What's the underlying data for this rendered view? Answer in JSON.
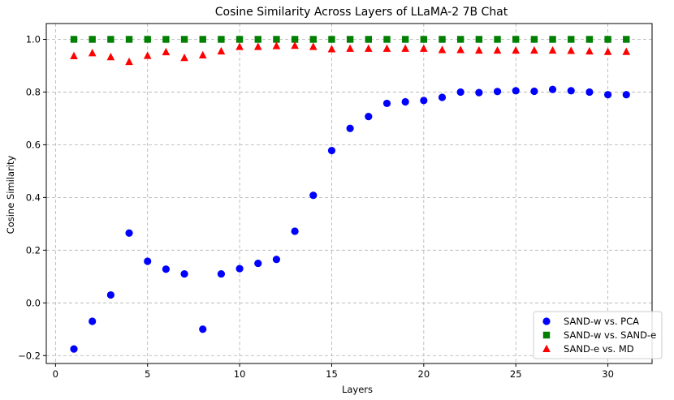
{
  "chart_data": {
    "type": "scatter",
    "title": "Cosine Similarity Across Layers of LLaMA-2 7B Chat",
    "xlabel": "Layers",
    "ylabel": "Cosine Similarity",
    "xlim": [
      -0.5,
      32.4
    ],
    "ylim": [
      -0.23,
      1.06
    ],
    "xticks": [
      0,
      5,
      10,
      15,
      20,
      25,
      30
    ],
    "yticks": [
      -0.2,
      0.0,
      0.2,
      0.4,
      0.6,
      0.8,
      1.0
    ],
    "ytick_labels": [
      "−0.2",
      "0.0",
      "0.2",
      "0.4",
      "0.6",
      "0.8",
      "1.0"
    ],
    "grid": true,
    "legend_position": "lower-right",
    "x": [
      1,
      2,
      3,
      4,
      5,
      6,
      7,
      8,
      9,
      10,
      11,
      12,
      13,
      14,
      15,
      16,
      17,
      18,
      19,
      20,
      21,
      22,
      23,
      24,
      25,
      26,
      27,
      28,
      29,
      30,
      31
    ],
    "series": [
      {
        "name": "SAND-w vs. PCA",
        "marker": "circle",
        "color": "#0000ff",
        "values": [
          -0.175,
          -0.07,
          0.03,
          0.265,
          0.158,
          0.128,
          0.11,
          -0.1,
          0.11,
          0.13,
          0.15,
          0.165,
          0.272,
          0.408,
          0.578,
          0.662,
          0.707,
          0.757,
          0.763,
          0.768,
          0.78,
          0.8,
          0.798,
          0.802,
          0.805,
          0.803,
          0.81,
          0.805,
          0.8,
          0.79,
          0.79
        ]
      },
      {
        "name": "SAND-w vs. SAND-e",
        "marker": "square",
        "color": "#008000",
        "values": [
          1.0,
          1.0,
          1.0,
          1.0,
          1.0,
          1.0,
          1.0,
          1.0,
          1.0,
          1.0,
          1.0,
          1.0,
          1.0,
          1.0,
          1.0,
          1.0,
          1.0,
          1.0,
          1.0,
          1.0,
          1.0,
          1.0,
          1.0,
          1.0,
          1.0,
          1.0,
          1.0,
          1.0,
          1.0,
          1.0,
          1.0
        ]
      },
      {
        "name": "SAND-e vs. MD",
        "marker": "triangle",
        "color": "#ff0000",
        "values": [
          0.937,
          0.948,
          0.933,
          0.915,
          0.938,
          0.952,
          0.93,
          0.94,
          0.955,
          0.972,
          0.972,
          0.975,
          0.976,
          0.972,
          0.963,
          0.965,
          0.965,
          0.965,
          0.965,
          0.965,
          0.96,
          0.96,
          0.958,
          0.958,
          0.958,
          0.958,
          0.958,
          0.957,
          0.955,
          0.953,
          0.953
        ]
      }
    ]
  }
}
